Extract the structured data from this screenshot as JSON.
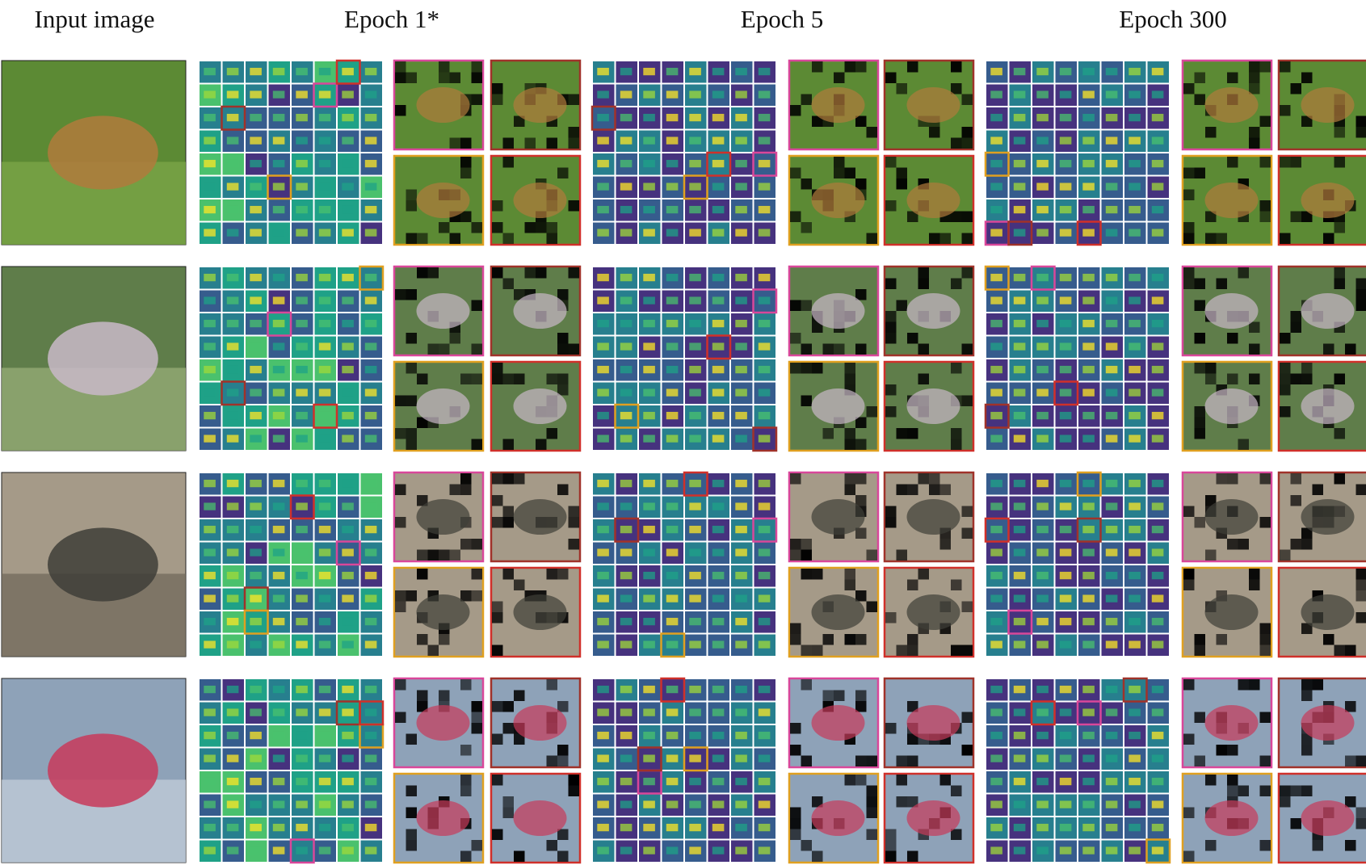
{
  "headers": [
    "Input image",
    "Epoch 1*",
    "Epoch 5",
    "Epoch 300"
  ]
}
